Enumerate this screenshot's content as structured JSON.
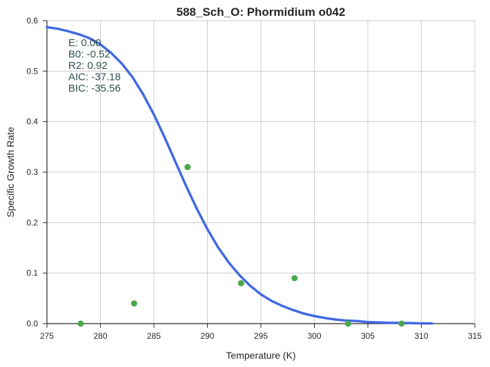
{
  "chart_data": {
    "type": "scatter",
    "title": "588_Sch_O: Phormidium o042",
    "xlabel": "Temperature (K)",
    "ylabel": "Specific Growth Rate",
    "xlim": [
      275,
      315
    ],
    "ylim": [
      0.0,
      0.6
    ],
    "xticks": [
      "275",
      "280",
      "285",
      "290",
      "295",
      "300",
      "305",
      "310",
      "315"
    ],
    "yticks": [
      "0.0",
      "0.1",
      "0.2",
      "0.3",
      "0.4",
      "0.5",
      "0.6"
    ],
    "grid": true,
    "series": [
      {
        "kind": "points",
        "color": "#4aa84a",
        "x": [
          278.15,
          283.15,
          288.15,
          293.15,
          298.15,
          303.15,
          308.15
        ],
        "y": [
          0.0,
          0.04,
          0.31,
          0.08,
          0.09,
          0.0,
          0.0
        ]
      },
      {
        "kind": "line",
        "color": "#4169e1",
        "x": [
          275,
          276,
          277,
          278,
          279,
          280,
          281,
          282,
          283,
          284,
          285,
          286,
          287,
          288,
          289,
          290,
          291,
          292,
          293,
          294,
          295,
          296,
          297,
          298,
          299,
          300,
          301,
          302,
          303,
          304,
          305,
          306,
          307,
          308,
          309,
          310,
          311
        ],
        "y": [
          0.587,
          0.584,
          0.579,
          0.573,
          0.565,
          0.553,
          0.536,
          0.515,
          0.488,
          0.454,
          0.414,
          0.369,
          0.321,
          0.273,
          0.228,
          0.187,
          0.151,
          0.121,
          0.096,
          0.075,
          0.058,
          0.045,
          0.035,
          0.027,
          0.02,
          0.015,
          0.011,
          0.008,
          0.006,
          0.005,
          0.003,
          0.0025,
          0.0018,
          0.0013,
          0.0009,
          0.0006,
          0.0004
        ]
      }
    ],
    "annotations": [
      "E:  0.00",
      "B0:  -0.52",
      "R2:  0.92",
      "AIC: -37.18",
      "BIC: -35.56"
    ]
  }
}
